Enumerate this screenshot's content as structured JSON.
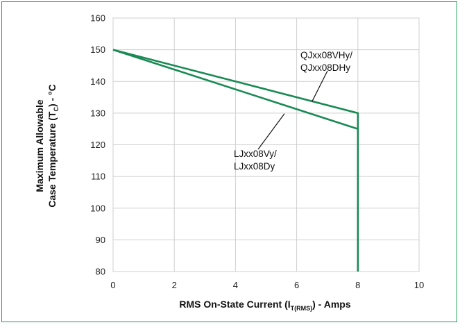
{
  "chart_data": {
    "type": "line",
    "xlabel": {
      "main": "RMS On-State Current (I",
      "sub": "T(RMS)",
      "tail": ") - Amps"
    },
    "ylabel": {
      "line1": "Maximum Allowable",
      "line2_main": "Case Temperature (T",
      "line2_sub": "C",
      "line2_tail": ") - °C"
    },
    "xlim": [
      0,
      10
    ],
    "ylim": [
      80,
      160
    ],
    "xticks": [
      0,
      2,
      4,
      6,
      8,
      10
    ],
    "yticks": [
      80,
      90,
      100,
      110,
      120,
      130,
      140,
      150,
      160
    ],
    "grid": true,
    "series": [
      {
        "name": "QJxx08VHy/ QJxx08DHy",
        "label_lines": [
          "QJxx08VHy/",
          "QJxx08DHy"
        ],
        "x": [
          0,
          8,
          8
        ],
        "y": [
          150,
          130,
          80
        ]
      },
      {
        "name": "LJxx08Vy/ LJxx08Dy",
        "label_lines": [
          "LJxx08Vy/",
          "LJxx08Dy"
        ],
        "x": [
          0,
          8,
          8
        ],
        "y": [
          150,
          125,
          80
        ]
      }
    ],
    "line_color": "#1a8a55",
    "border_color": "#1a9a5a"
  }
}
